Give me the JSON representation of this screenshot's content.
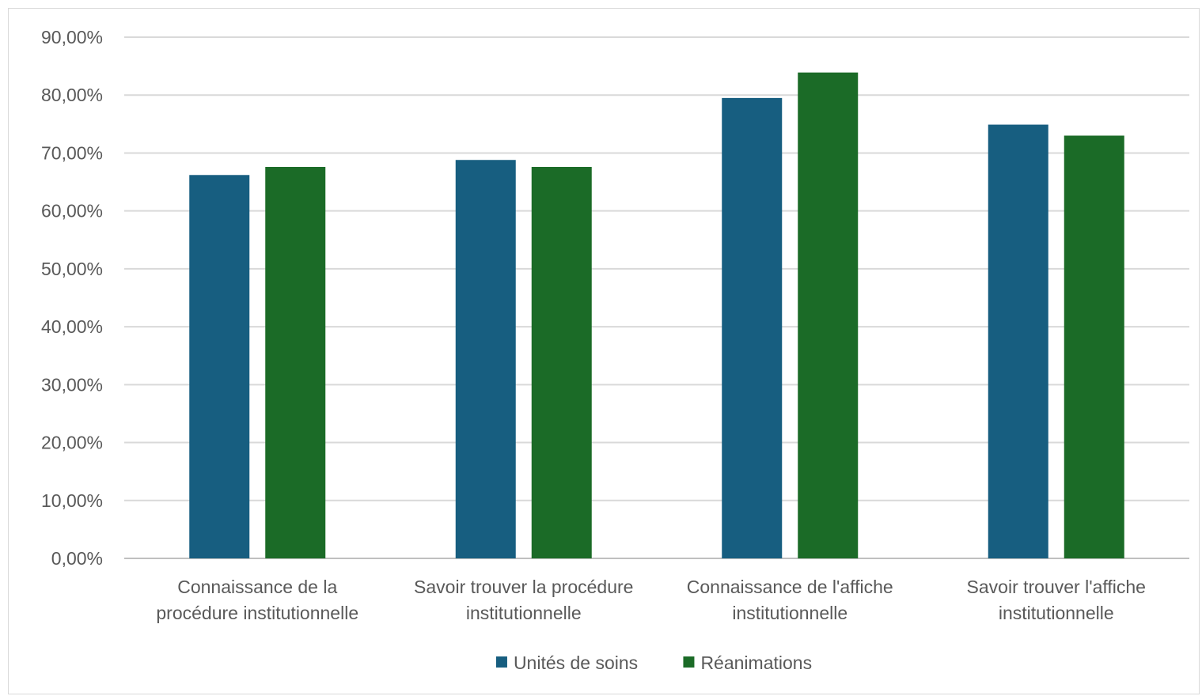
{
  "chart_data": {
    "type": "bar",
    "categories": [
      [
        "Connaissance de la",
        "procédure institutionnelle"
      ],
      [
        "Savoir trouver la procédure",
        "institutionnelle"
      ],
      [
        "Connaissance de l'affiche",
        "institutionnelle"
      ],
      [
        "Savoir trouver l'affiche",
        "institutionnelle"
      ]
    ],
    "series": [
      {
        "name": "Unités de soins",
        "color": "#175e80",
        "values": [
          66.2,
          68.8,
          79.5,
          74.9
        ]
      },
      {
        "name": "Réanimations",
        "color": "#1b6b27",
        "values": [
          67.6,
          67.6,
          83.9,
          73.0
        ]
      }
    ],
    "ylim": [
      0,
      90
    ],
    "yticks": [
      {
        "value": 0,
        "label": "0,00%"
      },
      {
        "value": 10,
        "label": "10,00%"
      },
      {
        "value": 20,
        "label": "20,00%"
      },
      {
        "value": 30,
        "label": "30,00%"
      },
      {
        "value": 40,
        "label": "40,00%"
      },
      {
        "value": 50,
        "label": "50,00%"
      },
      {
        "value": 60,
        "label": "60,00%"
      },
      {
        "value": 70,
        "label": "70,00%"
      },
      {
        "value": 80,
        "label": "80,00%"
      },
      {
        "value": 90,
        "label": "90,00%"
      }
    ],
    "grid": true,
    "legend_position": "bottom"
  }
}
